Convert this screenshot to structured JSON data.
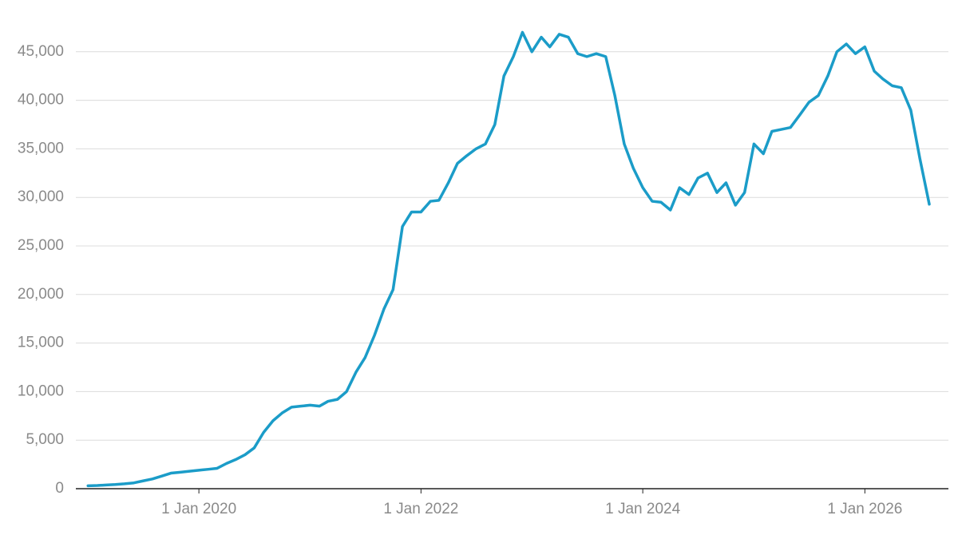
{
  "chart_data": {
    "type": "line",
    "x": [
      "2019-01-01",
      "2019-02-01",
      "2019-03-01",
      "2019-04-01",
      "2019-05-01",
      "2019-06-01",
      "2019-07-01",
      "2019-08-01",
      "2019-09-01",
      "2019-10-01",
      "2019-11-01",
      "2019-12-01",
      "2020-01-01",
      "2020-02-01",
      "2020-03-01",
      "2020-04-01",
      "2020-05-01",
      "2020-06-01",
      "2020-07-01",
      "2020-08-01",
      "2020-09-01",
      "2020-10-01",
      "2020-11-01",
      "2020-12-01",
      "2021-01-01",
      "2021-02-01",
      "2021-03-01",
      "2021-04-01",
      "2021-05-01",
      "2021-06-01",
      "2021-07-01",
      "2021-08-01",
      "2021-09-01",
      "2021-10-01",
      "2021-11-01",
      "2021-12-01",
      "2022-01-01",
      "2022-02-01",
      "2022-03-01",
      "2022-04-01",
      "2022-05-01",
      "2022-06-01",
      "2022-07-01",
      "2022-08-01",
      "2022-09-01",
      "2022-10-01",
      "2022-11-01",
      "2022-12-01",
      "2023-01-01",
      "2023-02-01",
      "2023-03-01",
      "2023-04-01",
      "2023-05-01",
      "2023-06-01",
      "2023-07-01",
      "2023-08-01",
      "2023-09-01",
      "2023-10-01",
      "2023-11-01",
      "2023-12-01",
      "2024-01-01",
      "2024-02-01",
      "2024-03-01",
      "2024-04-01",
      "2024-05-01",
      "2024-06-01",
      "2024-07-01",
      "2024-08-01",
      "2024-09-01",
      "2024-10-01",
      "2024-11-01",
      "2024-12-01",
      "2025-01-01",
      "2025-02-01",
      "2025-03-01",
      "2025-04-01",
      "2025-05-01",
      "2025-06-01",
      "2025-07-01",
      "2025-08-01",
      "2025-09-01",
      "2025-10-01",
      "2025-11-01",
      "2025-12-01",
      "2026-01-01",
      "2026-02-01",
      "2026-03-01",
      "2026-04-01",
      "2026-05-01",
      "2026-06-01",
      "2026-07-01",
      "2026-08-01"
    ],
    "series": [
      {
        "color": "#1b9cc8",
        "values": [
          300,
          330,
          380,
          430,
          500,
          600,
          800,
          1000,
          1300,
          1600,
          1700,
          1800,
          1900,
          2000,
          2100,
          2600,
          3000,
          3500,
          4200,
          5800,
          7000,
          7800,
          8400,
          8500,
          8600,
          8500,
          9000,
          9200,
          10000,
          12000,
          13500,
          15800,
          18500,
          20500,
          27000,
          28500,
          28500,
          29600,
          29700,
          31500,
          33500,
          34300,
          35000,
          35500,
          37500,
          42500,
          44500,
          47000,
          45000,
          46500,
          45500,
          46800,
          46500,
          44800,
          44500,
          44800,
          44500,
          40500,
          35500,
          33000,
          31000,
          29600,
          29500,
          28700,
          31000,
          30300,
          32000,
          32500,
          30500,
          31500,
          29200,
          30500,
          35500,
          34500,
          36800,
          37000,
          37200,
          38500,
          39800,
          40500,
          42500,
          45000,
          45800,
          44800,
          45500,
          43000,
          42200,
          41500,
          41300,
          39000,
          34000,
          29300
        ]
      }
    ],
    "xlim": [
      "2018-11-22",
      "2026-10-03"
    ],
    "xticks": [
      {
        "value": "2020-01-01",
        "label": "1 Jan 2020"
      },
      {
        "value": "2022-01-01",
        "label": "1 Jan 2022"
      },
      {
        "value": "2024-01-01",
        "label": "1 Jan 2024"
      },
      {
        "value": "2026-01-01",
        "label": "1 Jan 2026"
      }
    ],
    "ylim": [
      0,
      50000
    ],
    "yticks": [
      0,
      {
        "value": 5000,
        "label": "5,000"
      },
      {
        "value": 10000,
        "label": "10,000"
      },
      {
        "value": 15000,
        "label": "15,000"
      },
      {
        "value": 20000,
        "label": "20,000"
      },
      {
        "value": 25000,
        "label": "25,000"
      },
      {
        "value": 30000,
        "label": "30,000"
      },
      {
        "value": 35000,
        "label": "35,000"
      },
      {
        "value": 40000,
        "label": "40,000"
      },
      {
        "value": 45000,
        "label": "45,000"
      }
    ],
    "grid": true
  }
}
